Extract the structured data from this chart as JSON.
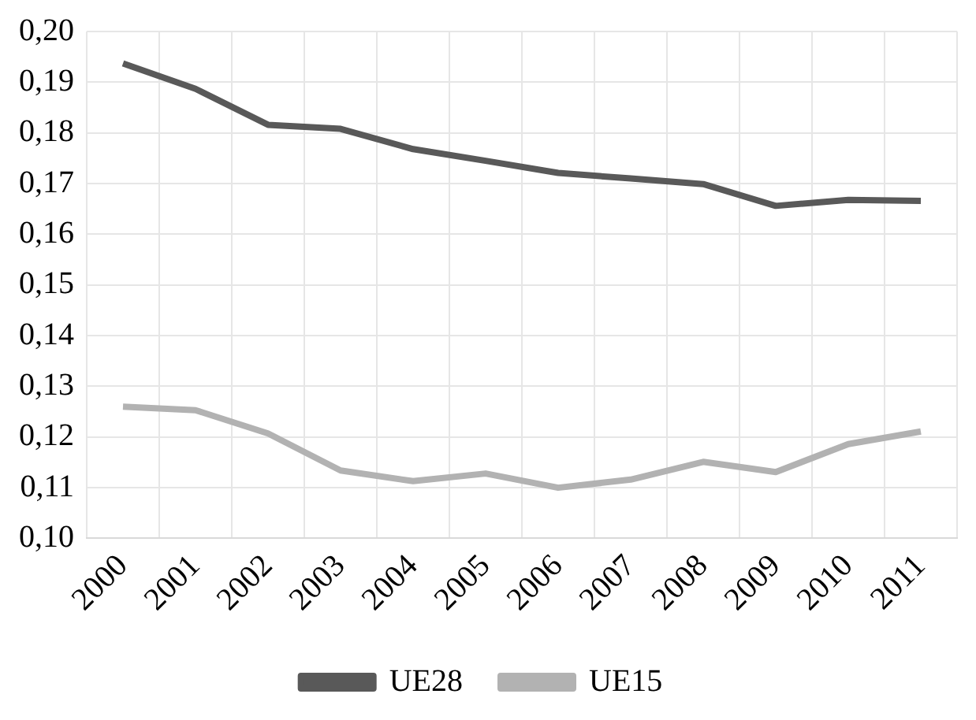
{
  "chart_data": {
    "type": "line",
    "categories": [
      "2000",
      "2001",
      "2002",
      "2003",
      "2004",
      "2005",
      "2006",
      "2007",
      "2008",
      "2009",
      "2010",
      "2011"
    ],
    "series": [
      {
        "name": "UE28",
        "color": "#595959",
        "values": [
          0.1937,
          0.1887,
          0.1816,
          0.1808,
          0.1768,
          0.1745,
          0.1721,
          0.171,
          0.1699,
          0.1656,
          0.1668,
          0.1666
        ]
      },
      {
        "name": "UE15",
        "color": "#b2b2b2",
        "values": [
          0.126,
          0.1253,
          0.1207,
          0.1134,
          0.1113,
          0.1128,
          0.11,
          0.1116,
          0.1151,
          0.1131,
          0.1186,
          0.1211
        ]
      }
    ],
    "ylim": [
      0.1,
      0.2
    ],
    "yticks": [
      {
        "value": 0.1,
        "label": "0,10"
      },
      {
        "value": 0.11,
        "label": "0,11"
      },
      {
        "value": 0.12,
        "label": "0,12"
      },
      {
        "value": 0.13,
        "label": "0,13"
      },
      {
        "value": 0.14,
        "label": "0,14"
      },
      {
        "value": 0.15,
        "label": "0,15"
      },
      {
        "value": 0.16,
        "label": "0,16"
      },
      {
        "value": 0.17,
        "label": "0,17"
      },
      {
        "value": 0.18,
        "label": "0,18"
      },
      {
        "value": 0.19,
        "label": "0,19"
      },
      {
        "value": 0.2,
        "label": "0,20"
      }
    ],
    "grid": true,
    "legend": "bottom",
    "marker": "none",
    "line_style": "solid"
  }
}
